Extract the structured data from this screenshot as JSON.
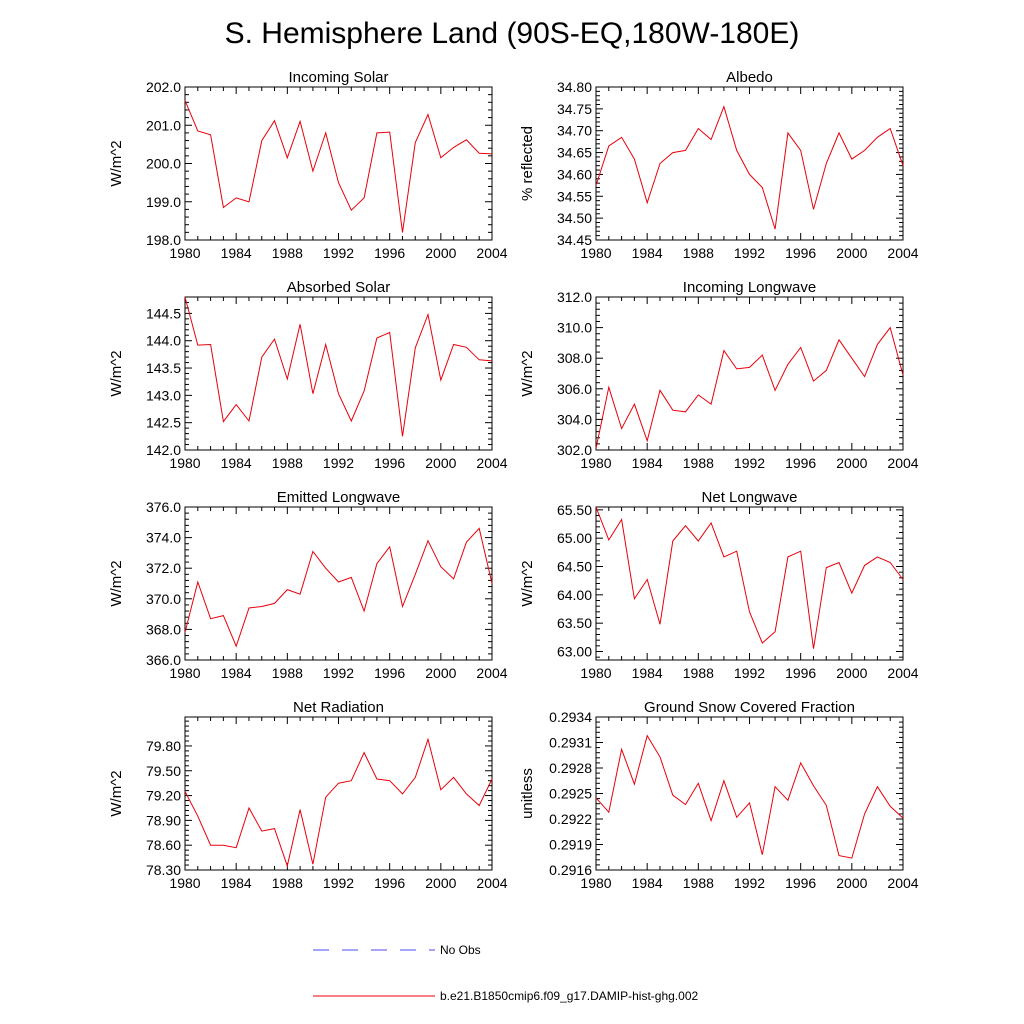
{
  "title": "S. Hemisphere Land (90S-EQ,180W-180E)",
  "x_ticks": [
    "1980",
    "1984",
    "1988",
    "1992",
    "1996",
    "2000",
    "2004"
  ],
  "colors": {
    "model": "#e8000b",
    "obs": "#4a4af0",
    "axis": "#000000"
  },
  "legend": {
    "obs_label": "No Obs",
    "model_label": "b.e21.B1850cmip6.f09_g17.DAMIP-hist-ghg.002"
  },
  "chart_data": [
    {
      "type": "line",
      "title": "Incoming Solar",
      "ylabel": "W/m^2",
      "xlim": [
        1980,
        2004
      ],
      "ylim": [
        198.0,
        202.0
      ],
      "y_ticks": [
        "198.0",
        "199.0",
        "200.0",
        "201.0",
        "202.0"
      ],
      "y_tick_values": [
        198.0,
        199.0,
        200.0,
        201.0,
        202.0
      ],
      "series": [
        {
          "name": "b.e21.B1850cmip6.f09_g17.DAMIP-hist-ghg.002",
          "x": [
            1980,
            1981,
            1982,
            1983,
            1984,
            1985,
            1986,
            1987,
            1988,
            1989,
            1990,
            1991,
            1992,
            1993,
            1994,
            1995,
            1996,
            1997,
            1998,
            1999,
            2000,
            2001,
            2002,
            2003,
            2004
          ],
          "values": [
            201.65,
            200.85,
            200.75,
            198.85,
            199.1,
            199.0,
            200.6,
            201.12,
            200.15,
            201.1,
            199.8,
            200.8,
            199.5,
            198.78,
            199.1,
            200.8,
            200.82,
            198.2,
            200.55,
            201.28,
            200.15,
            200.42,
            200.62,
            200.27,
            200.25
          ]
        }
      ]
    },
    {
      "type": "line",
      "title": "Albedo",
      "ylabel": "% reflected",
      "xlim": [
        1980,
        2004
      ],
      "ylim": [
        34.45,
        34.8
      ],
      "y_ticks": [
        "34.45",
        "34.50",
        "34.55",
        "34.60",
        "34.65",
        "34.70",
        "34.75",
        "34.80"
      ],
      "y_tick_values": [
        34.45,
        34.5,
        34.55,
        34.6,
        34.65,
        34.7,
        34.75,
        34.8
      ],
      "series": [
        {
          "name": "b.e21.B1850cmip6.f09_g17.DAMIP-hist-ghg.002",
          "x": [
            1980,
            1981,
            1982,
            1983,
            1984,
            1985,
            1986,
            1987,
            1988,
            1989,
            1990,
            1991,
            1992,
            1993,
            1994,
            1995,
            1996,
            1997,
            1998,
            1999,
            2000,
            2001,
            2002,
            2003,
            2004
          ],
          "values": [
            34.575,
            34.665,
            34.685,
            34.635,
            34.535,
            34.625,
            34.65,
            34.655,
            34.705,
            34.68,
            34.755,
            34.655,
            34.6,
            34.57,
            34.475,
            34.695,
            34.655,
            34.52,
            34.625,
            34.695,
            34.635,
            34.655,
            34.685,
            34.705,
            34.62
          ]
        }
      ]
    },
    {
      "type": "line",
      "title": "Absorbed Solar",
      "ylabel": "W/m^2",
      "xlim": [
        1980,
        2004
      ],
      "ylim": [
        142.0,
        144.8
      ],
      "y_ticks": [
        "142.0",
        "142.5",
        "143.0",
        "143.5",
        "144.0",
        "144.5"
      ],
      "y_tick_values": [
        142.0,
        142.5,
        143.0,
        143.5,
        144.0,
        144.5
      ],
      "series": [
        {
          "name": "b.e21.B1850cmip6.f09_g17.DAMIP-hist-ghg.002",
          "x": [
            1980,
            1981,
            1982,
            1983,
            1984,
            1985,
            1986,
            1987,
            1988,
            1989,
            1990,
            1991,
            1992,
            1993,
            1994,
            1995,
            1996,
            1997,
            1998,
            1999,
            2000,
            2001,
            2002,
            2003,
            2004
          ],
          "values": [
            144.8,
            143.92,
            143.93,
            142.52,
            142.83,
            142.53,
            143.7,
            144.03,
            143.3,
            144.3,
            143.03,
            143.93,
            143.03,
            142.53,
            143.08,
            144.05,
            144.15,
            142.25,
            143.87,
            144.48,
            143.28,
            143.93,
            143.88,
            143.65,
            143.63
          ]
        }
      ]
    },
    {
      "type": "line",
      "title": "Incoming Longwave",
      "ylabel": "W/m^2",
      "xlim": [
        1980,
        2004
      ],
      "ylim": [
        302.0,
        312.0
      ],
      "y_ticks": [
        "302.0",
        "304.0",
        "306.0",
        "308.0",
        "310.0",
        "312.0"
      ],
      "y_tick_values": [
        302.0,
        304.0,
        306.0,
        308.0,
        310.0,
        312.0
      ],
      "series": [
        {
          "name": "b.e21.B1850cmip6.f09_g17.DAMIP-hist-ghg.002",
          "x": [
            1980,
            1981,
            1982,
            1983,
            1984,
            1985,
            1986,
            1987,
            1988,
            1989,
            1990,
            1991,
            1992,
            1993,
            1994,
            1995,
            1996,
            1997,
            1998,
            1999,
            2000,
            2001,
            2002,
            2003,
            2004
          ],
          "values": [
            302.1,
            306.1,
            303.4,
            305.0,
            302.6,
            305.9,
            304.6,
            304.5,
            305.6,
            305.0,
            308.5,
            307.3,
            307.4,
            308.2,
            305.9,
            307.6,
            308.7,
            306.5,
            307.2,
            309.2,
            308.0,
            306.8,
            308.9,
            310.0,
            306.9
          ]
        }
      ]
    },
    {
      "type": "line",
      "title": "Emitted Longwave",
      "ylabel": "W/m^2",
      "xlim": [
        1980,
        2004
      ],
      "ylim": [
        366.0,
        376.0
      ],
      "y_ticks": [
        "366.0",
        "368.0",
        "370.0",
        "372.0",
        "374.0",
        "376.0"
      ],
      "y_tick_values": [
        366.0,
        368.0,
        370.0,
        372.0,
        374.0,
        376.0
      ],
      "series": [
        {
          "name": "b.e21.B1850cmip6.f09_g17.DAMIP-hist-ghg.002",
          "x": [
            1980,
            1981,
            1982,
            1983,
            1984,
            1985,
            1986,
            1987,
            1988,
            1989,
            1990,
            1991,
            1992,
            1993,
            1994,
            1995,
            1996,
            1997,
            1998,
            1999,
            2000,
            2001,
            2002,
            2003,
            2004
          ],
          "values": [
            367.8,
            371.1,
            368.7,
            368.9,
            366.9,
            369.4,
            369.5,
            369.7,
            370.6,
            370.3,
            373.1,
            372.0,
            371.1,
            371.4,
            369.2,
            372.3,
            373.4,
            369.5,
            371.6,
            373.8,
            372.1,
            371.3,
            373.7,
            374.6,
            371.0
          ]
        }
      ]
    },
    {
      "type": "line",
      "title": "Net Longwave",
      "ylabel": "W/m^2",
      "xlim": [
        1980,
        2004
      ],
      "ylim": [
        62.85,
        65.55
      ],
      "y_ticks": [
        "63.00",
        "63.50",
        "64.00",
        "64.50",
        "65.00",
        "65.50"
      ],
      "y_tick_values": [
        63.0,
        63.5,
        64.0,
        64.5,
        65.0,
        65.5
      ],
      "series": [
        {
          "name": "b.e21.B1850cmip6.f09_g17.DAMIP-hist-ghg.002",
          "x": [
            1980,
            1981,
            1982,
            1983,
            1984,
            1985,
            1986,
            1987,
            1988,
            1989,
            1990,
            1991,
            1992,
            1993,
            1994,
            1995,
            1996,
            1997,
            1998,
            1999,
            2000,
            2001,
            2002,
            2003,
            2004
          ],
          "values": [
            65.55,
            64.97,
            65.33,
            63.93,
            64.27,
            63.48,
            64.95,
            65.22,
            64.95,
            65.27,
            64.67,
            64.77,
            63.7,
            63.15,
            63.35,
            64.67,
            64.77,
            63.05,
            64.48,
            64.57,
            64.03,
            64.52,
            64.67,
            64.57,
            64.27
          ]
        }
      ]
    },
    {
      "type": "line",
      "title": "Net Radiation",
      "ylabel": "W/m^2",
      "xlim": [
        1980,
        2004
      ],
      "ylim": [
        78.3,
        80.15
      ],
      "y_ticks": [
        "78.30",
        "78.60",
        "78.90",
        "79.20",
        "79.50",
        "79.80"
      ],
      "y_tick_values": [
        78.3,
        78.6,
        78.9,
        79.2,
        79.5,
        79.8
      ],
      "series": [
        {
          "name": "b.e21.B1850cmip6.f09_g17.DAMIP-hist-ghg.002",
          "x": [
            1980,
            1981,
            1982,
            1983,
            1984,
            1985,
            1986,
            1987,
            1988,
            1989,
            1990,
            1991,
            1992,
            1993,
            1994,
            1995,
            1996,
            1997,
            1998,
            1999,
            2000,
            2001,
            2002,
            2003,
            2004
          ],
          "values": [
            79.25,
            78.95,
            78.6,
            78.6,
            78.57,
            79.05,
            78.77,
            78.8,
            78.35,
            79.03,
            78.37,
            79.18,
            79.35,
            79.38,
            79.72,
            79.4,
            79.38,
            79.22,
            79.42,
            79.88,
            79.27,
            79.42,
            79.22,
            79.08,
            79.4
          ]
        }
      ]
    },
    {
      "type": "line",
      "title": "Ground Snow Covered Fraction",
      "ylabel": "unitless",
      "xlim": [
        1980,
        2004
      ],
      "ylim": [
        0.2916,
        0.2934
      ],
      "y_ticks": [
        "0.2916",
        "0.2919",
        "0.2922",
        "0.2925",
        "0.2928",
        "0.2931",
        "0.2934"
      ],
      "y_tick_values": [
        0.2916,
        0.2919,
        0.2922,
        0.2925,
        0.2928,
        0.2931,
        0.2934
      ],
      "series": [
        {
          "name": "b.e21.B1850cmip6.f09_g17.DAMIP-hist-ghg.002",
          "x": [
            1980,
            1981,
            1982,
            1983,
            1984,
            1985,
            1986,
            1987,
            1988,
            1989,
            1990,
            1991,
            1992,
            1993,
            1994,
            1995,
            1996,
            1997,
            1998,
            1999,
            2000,
            2001,
            2002,
            2003,
            2004
          ],
          "values": [
            0.29245,
            0.29228,
            0.29302,
            0.29261,
            0.29318,
            0.29293,
            0.29248,
            0.29237,
            0.29262,
            0.29218,
            0.29265,
            0.29222,
            0.29239,
            0.29178,
            0.29258,
            0.29242,
            0.29286,
            0.29259,
            0.29236,
            0.29177,
            0.29174,
            0.29226,
            0.29258,
            0.29235,
            0.29221
          ]
        }
      ]
    }
  ]
}
